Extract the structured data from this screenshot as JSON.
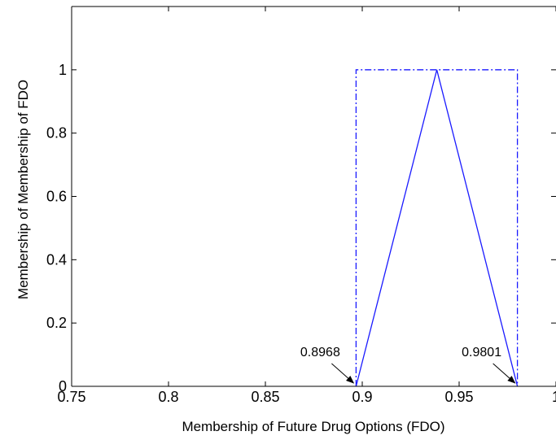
{
  "chart_data": {
    "type": "line",
    "title": "",
    "xlabel": "Membership of Future Drug Options (FDO)",
    "ylabel": "Membership of Membership of FDO",
    "xlim": [
      0.75,
      1.0
    ],
    "ylim": [
      0,
      1.2
    ],
    "x_ticks": [
      0.75,
      0.8,
      0.85,
      0.9,
      0.95,
      1.0
    ],
    "x_tick_labels": [
      "0.75",
      "0.8",
      "0.85",
      "0.9",
      "0.95",
      "1"
    ],
    "y_ticks": [
      0,
      0.2,
      0.4,
      0.6,
      0.8,
      1.0
    ],
    "y_tick_labels": [
      "0",
      "0.2",
      "0.4",
      "0.6",
      "0.8",
      "1"
    ],
    "grid": false,
    "series": [
      {
        "style": "dash-dot",
        "color": "#1a1aff",
        "x": [
          0.8968,
          0.8968,
          0.9801,
          0.9801
        ],
        "y": [
          0,
          1,
          1,
          0
        ]
      },
      {
        "style": "solid",
        "color": "#1a1aff",
        "x": [
          0.8968,
          0.9385,
          0.9801
        ],
        "y": [
          0,
          1,
          0
        ]
      }
    ],
    "annotations": [
      {
        "text": "0.8968",
        "x": 0.8968,
        "y": 0
      },
      {
        "text": "0.9801",
        "x": 0.9801,
        "y": 0
      }
    ]
  }
}
